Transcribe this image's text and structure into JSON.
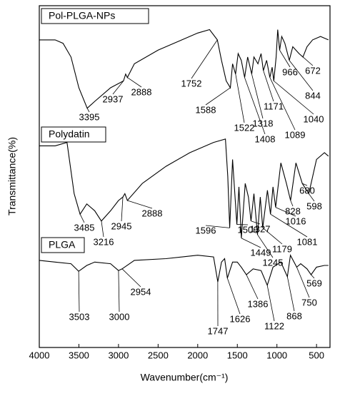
{
  "chart_data": {
    "type": "line",
    "x_label": "Wavenumber(cm⁻¹)",
    "y_label": "Transmittance(%)",
    "xlim": [
      4000,
      330
    ],
    "ylim": [
      0,
      100
    ],
    "xticks": [
      4000,
      3500,
      3000,
      2500,
      2000,
      1500,
      1000,
      500
    ],
    "series": [
      {
        "name": "Pol-PLGA-NPs",
        "color": "#000000",
        "x": [
          4000,
          3800,
          3700,
          3600,
          3500,
          3395,
          3300,
          3100,
          2937,
          2910,
          2888,
          2800,
          2500,
          2200,
          2000,
          1850,
          1752,
          1700,
          1640,
          1588,
          1560,
          1522,
          1490,
          1450,
          1408,
          1370,
          1318,
          1290,
          1240,
          1200,
          1171,
          1130,
          1089,
          1060,
          1040,
          1010,
          990,
          966,
          940,
          900,
          844,
          800,
          720,
          672,
          620,
          550,
          450,
          350
        ],
        "values": [
          90,
          90,
          89,
          85,
          76,
          70,
          72,
          76,
          78,
          80,
          79,
          83,
          87,
          90,
          92,
          93,
          90,
          84,
          78,
          76,
          83,
          80,
          86,
          84,
          79,
          85,
          80,
          85,
          83,
          86,
          81,
          84,
          79,
          82,
          78,
          85,
          93,
          87,
          91,
          89,
          84,
          88,
          86,
          85,
          88,
          90,
          91,
          90
        ],
        "peaks": [
          3395,
          2937,
          2888,
          1752,
          1588,
          1522,
          1408,
          1318,
          1171,
          1089,
          1040,
          966,
          844,
          672
        ]
      },
      {
        "name": "Polydatin",
        "color": "#000000",
        "x": [
          4000,
          3800,
          3650,
          3560,
          3485,
          3400,
          3300,
          3216,
          3100,
          3000,
          2945,
          2920,
          2888,
          2700,
          2400,
          2100,
          1800,
          1650,
          1620,
          1596,
          1560,
          1506,
          1480,
          1449,
          1400,
          1360,
          1327,
          1290,
          1245,
          1210,
          1179,
          1120,
          1081,
          1050,
          1016,
          950,
          880,
          828,
          760,
          680,
          598,
          500,
          400,
          350
        ],
        "values": [
          59,
          59,
          60,
          45,
          39,
          42,
          40,
          37,
          40,
          43,
          44,
          45,
          43,
          48,
          53,
          57,
          60,
          61,
          50,
          35,
          55,
          36,
          47,
          32,
          48,
          44,
          37,
          45,
          33,
          44,
          35,
          46,
          39,
          47,
          41,
          54,
          48,
          43,
          54,
          48,
          45,
          55,
          57,
          56
        ],
        "peaks": [
          3485,
          3216,
          2945,
          2888,
          1596,
          1506,
          1449,
          1327,
          1245,
          1179,
          1081,
          1016,
          828,
          680,
          598
        ]
      },
      {
        "name": "PLGA",
        "color": "#000000",
        "x": [
          4000,
          3800,
          3600,
          3503,
          3400,
          3300,
          3100,
          3000,
          2954,
          2800,
          2400,
          2000,
          1800,
          1747,
          1700,
          1660,
          1626,
          1560,
          1500,
          1450,
          1386,
          1300,
          1200,
          1122,
          1050,
          950,
          868,
          830,
          750,
          700,
          620,
          569,
          500,
          400,
          350
        ],
        "values": [
          25.5,
          25,
          24.5,
          22.3,
          24,
          25,
          24.5,
          22.5,
          23,
          25.5,
          26,
          27,
          26.5,
          19.2,
          25,
          26,
          20.3,
          25,
          25,
          23.5,
          21.3,
          23,
          22.5,
          18.2,
          23.5,
          25,
          20.7,
          27,
          23.5,
          24.5,
          23,
          21.3,
          23.5,
          24,
          24
        ]
      },
      {
        "peaks": [
          3503,
          3000,
          2954,
          1747,
          1626,
          1386,
          1122,
          868,
          750,
          569
        ]
      }
    ]
  }
}
